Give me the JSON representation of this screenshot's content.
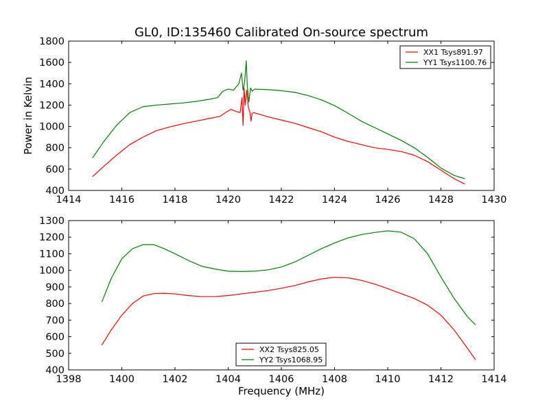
{
  "title": "GL0, ID:135460 Calibrated On-source spectrum",
  "colors": {
    "red": "#ff0000",
    "green": "#008000"
  },
  "chart_data": [
    {
      "type": "line",
      "xlabel": "",
      "ylabel": "Power in Kelvin",
      "xlim": [
        1414,
        1430
      ],
      "ylim": [
        400,
        1800
      ],
      "xticks": [
        "1414",
        "1416",
        "1418",
        "1420",
        "1422",
        "1424",
        "1426",
        "1428",
        "1430"
      ],
      "yticks": [
        "400",
        "600",
        "800",
        "1000",
        "1200",
        "1400",
        "1600",
        "1800"
      ],
      "legend_placement": "top-right",
      "series": [
        {
          "name": "XX1 Tsys891.97",
          "color": "#ff0000",
          "x": [
            1414.9,
            1415.3,
            1415.8,
            1416.3,
            1416.8,
            1417.3,
            1417.8,
            1418.3,
            1418.8,
            1419.3,
            1419.7,
            1419.9,
            1420.1,
            1420.3,
            1420.45,
            1420.52,
            1420.56,
            1420.6,
            1420.64,
            1420.7,
            1420.76,
            1420.82,
            1420.86,
            1420.9,
            1420.95,
            1421.1,
            1421.5,
            1422.0,
            1422.5,
            1423.0,
            1423.5,
            1424.0,
            1424.5,
            1425.0,
            1425.5,
            1426.0,
            1426.5,
            1427.0,
            1427.5,
            1428.0,
            1428.5,
            1428.9
          ],
          "y": [
            530,
            620,
            730,
            830,
            900,
            960,
            995,
            1025,
            1050,
            1075,
            1095,
            1130,
            1160,
            1140,
            1130,
            1270,
            1010,
            1360,
            1200,
            1340,
            1180,
            1130,
            1050,
            1120,
            1130,
            1120,
            1090,
            1060,
            1030,
            990,
            950,
            900,
            860,
            830,
            800,
            785,
            765,
            730,
            670,
            590,
            510,
            460
          ]
        },
        {
          "name": "YY1 Tsys1100.76",
          "color": "#008000",
          "x": [
            1414.9,
            1415.3,
            1415.8,
            1416.3,
            1416.8,
            1417.3,
            1417.8,
            1418.3,
            1418.8,
            1419.3,
            1419.6,
            1419.8,
            1420.0,
            1420.2,
            1420.4,
            1420.5,
            1420.56,
            1420.62,
            1420.68,
            1420.72,
            1420.78,
            1420.84,
            1420.9,
            1421.0,
            1421.5,
            1422.0,
            1422.5,
            1423.0,
            1423.5,
            1424.0,
            1424.5,
            1425.0,
            1425.5,
            1426.0,
            1426.5,
            1427.0,
            1427.5,
            1428.0,
            1428.5,
            1428.9
          ],
          "y": [
            705,
            850,
            1010,
            1130,
            1185,
            1200,
            1210,
            1220,
            1235,
            1255,
            1270,
            1330,
            1350,
            1340,
            1400,
            1500,
            1340,
            1420,
            1615,
            1380,
            1230,
            1360,
            1330,
            1350,
            1345,
            1335,
            1320,
            1290,
            1250,
            1195,
            1125,
            1050,
            990,
            930,
            870,
            800,
            710,
            610,
            540,
            510
          ]
        }
      ]
    },
    {
      "type": "line",
      "xlabel": "Frequency (MHz)",
      "ylabel": "",
      "xlim": [
        1398,
        1414
      ],
      "ylim": [
        400,
        1300
      ],
      "xticks": [
        "1398",
        "1400",
        "1402",
        "1404",
        "1406",
        "1408",
        "1410",
        "1412",
        "1414"
      ],
      "yticks": [
        "400",
        "500",
        "600",
        "700",
        "800",
        "900",
        "1000",
        "1100",
        "1200",
        "1300"
      ],
      "legend_placement": "lower center",
      "series": [
        {
          "name": "XX2 Tsys825.05",
          "color": "#ff0000",
          "x": [
            1399.25,
            1399.6,
            1400.0,
            1400.4,
            1400.8,
            1401.2,
            1401.6,
            1402.0,
            1402.5,
            1403.0,
            1403.5,
            1404.0,
            1404.5,
            1405.0,
            1405.5,
            1406.0,
            1406.5,
            1407.0,
            1407.5,
            1408.0,
            1408.5,
            1409.0,
            1409.5,
            1410.0,
            1410.5,
            1411.0,
            1411.5,
            1412.0,
            1412.5,
            1413.0,
            1413.3
          ],
          "y": [
            550,
            640,
            730,
            800,
            845,
            860,
            862,
            858,
            848,
            842,
            842,
            848,
            858,
            868,
            878,
            892,
            908,
            930,
            948,
            958,
            955,
            940,
            918,
            890,
            860,
            830,
            790,
            730,
            640,
            530,
            462
          ]
        },
        {
          "name": "YY2 Tsys1068.95",
          "color": "#008000",
          "x": [
            1399.25,
            1399.6,
            1400.0,
            1400.4,
            1400.8,
            1401.2,
            1401.6,
            1402.0,
            1402.5,
            1403.0,
            1403.5,
            1404.0,
            1404.5,
            1405.0,
            1405.5,
            1406.0,
            1406.5,
            1407.0,
            1407.5,
            1408.0,
            1408.5,
            1409.0,
            1409.5,
            1410.0,
            1410.5,
            1411.0,
            1411.5,
            1412.0,
            1412.5,
            1413.0,
            1413.3
          ],
          "y": [
            810,
            950,
            1070,
            1130,
            1155,
            1155,
            1130,
            1100,
            1060,
            1025,
            1008,
            995,
            993,
            995,
            1003,
            1020,
            1050,
            1090,
            1130,
            1165,
            1195,
            1215,
            1228,
            1238,
            1230,
            1190,
            1100,
            960,
            830,
            720,
            672
          ]
        }
      ]
    }
  ]
}
